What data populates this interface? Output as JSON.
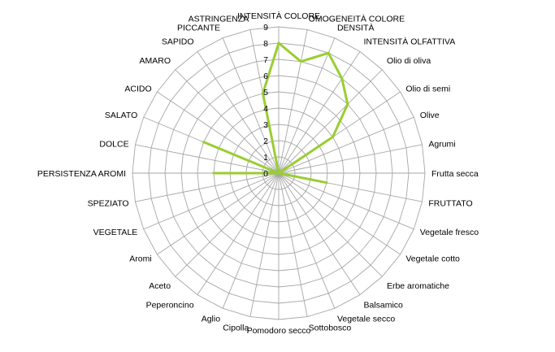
{
  "chart_data": {
    "type": "radar",
    "categories": [
      "INTENSITÀ COLORE",
      "OMOGENEITÀ COLORE",
      "DENSITÀ",
      "INTENSITÀ OLFATTIVA",
      "Olio di oliva",
      "Olio di semi",
      "Olive",
      "Agrumi",
      "Frutta secca",
      "FRUTTATO",
      "Vegetale fresco",
      "Vegetale cotto",
      "Erbe aromatiche",
      "Balsamico",
      "Vegetale secco",
      "Sottobosco",
      "Pomodoro secco",
      "Cipolla",
      "Aglio",
      "Peperoncino",
      "Aceto",
      "Aromi",
      "VEGETALE",
      "SPEZIATO",
      "PERSISTENZA AROMI",
      "DOLCE",
      "SALATO",
      "ACIDO",
      "AMARO",
      "SAPIDO",
      "PICCANTE",
      "ASTRINGENZA"
    ],
    "values": [
      8,
      7,
      8,
      7,
      6,
      4,
      0,
      0,
      0,
      3,
      0,
      0,
      0,
      0,
      0,
      0,
      0,
      0,
      0,
      0,
      0,
      0,
      0,
      0,
      4,
      0,
      5,
      0,
      0,
      0,
      0,
      5
    ],
    "radial_ticks": [
      "0",
      "1",
      "2",
      "3",
      "4",
      "5",
      "6",
      "7",
      "8",
      "9"
    ],
    "rmax": 9,
    "grid": true,
    "series_color": "#9ACD32",
    "grid_color": "#A6A6A6"
  }
}
